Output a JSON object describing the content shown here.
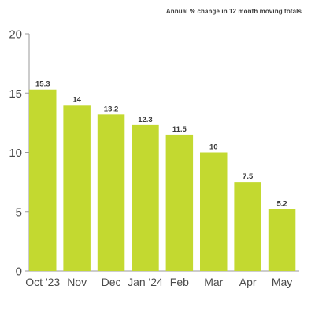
{
  "chart_data": {
    "type": "bar",
    "title": "Annual % change in 12 month moving totals",
    "categories": [
      "Oct '23",
      "Nov",
      "Dec",
      "Jan '24",
      "Feb",
      "Mar",
      "Apr",
      "May"
    ],
    "values": [
      15.3,
      14,
      13.2,
      12.3,
      11.5,
      10,
      7.5,
      5.2
    ],
    "data_labels": [
      "15.3",
      "14",
      "13.2",
      "12.3",
      "11.5",
      "10",
      "7.5",
      "5.2"
    ],
    "xlabel": "",
    "ylabel": "",
    "ylim": [
      0,
      20
    ],
    "yticks": [
      0,
      5,
      10,
      15,
      20
    ],
    "grid": false,
    "legend": "none",
    "bar_color": "#c3d930"
  }
}
